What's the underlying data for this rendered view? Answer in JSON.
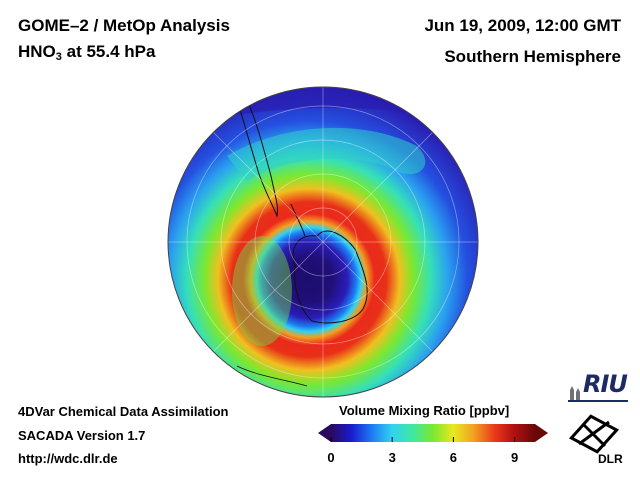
{
  "header": {
    "title": "GOME–2 / MetOp Analysis",
    "species_main": "HNO",
    "species_sub": "3",
    "species_rest": " at 55.4 hPa",
    "datetime": "Jun 19, 2009, 12:00 GMT",
    "hemisphere": "Southern Hemisphere"
  },
  "footer": {
    "line1": "4DVar Chemical Data Assimilation",
    "line2": "SACADA Version 1.7",
    "line3": "http://wdc.dlr.de"
  },
  "colorbar": {
    "title": "Volume Mixing Ratio [ppbv]",
    "ticks": [
      "0",
      "3",
      "6",
      "9"
    ],
    "min": 0,
    "max": 10,
    "colors": [
      "#2a0a5e",
      "#1a1bd0",
      "#1d7cf2",
      "#31d2f0",
      "#3ee8a0",
      "#7be830",
      "#e8e820",
      "#f2a020",
      "#ea3a1c",
      "#b01010",
      "#6a0808"
    ]
  },
  "logos": {
    "riu": "RIU",
    "dlr": "DLR"
  },
  "map": {
    "projection": "orthographic south polar",
    "quantity": "HNO3 volume mixing ratio",
    "structure": [
      {
        "region": "polar vortex core",
        "value_ppbv": 0.5
      },
      {
        "region": "vortex edge ring",
        "value_ppbv": 3
      },
      {
        "region": "collar maximum",
        "value_ppbv": 9.5
      },
      {
        "region": "mid latitudes",
        "value_ppbv": 5
      },
      {
        "region": "outer latitudes",
        "value_ppbv": 1.5
      }
    ]
  }
}
